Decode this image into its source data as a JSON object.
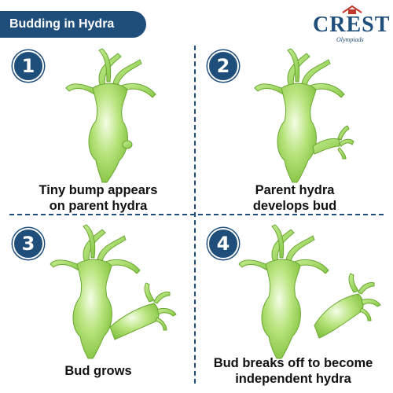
{
  "header": {
    "title": "Budding in Hydra"
  },
  "logo": {
    "main": "CREST",
    "sub": "Olympiads"
  },
  "steps": [
    {
      "number": "1",
      "caption_line1": "Tiny bump appears",
      "caption_line2": "on parent hydra"
    },
    {
      "number": "2",
      "caption_line1": "Parent hydra",
      "caption_line2": "develops bud"
    },
    {
      "number": "3",
      "caption_line1": "Bud grows",
      "caption_line2": ""
    },
    {
      "number": "4",
      "caption_line1": "Bud breaks off to become",
      "caption_line2": "independent hydra"
    }
  ],
  "colors": {
    "accent": "#1f4e7a",
    "hydra_light": "#e6f7c8",
    "hydra_mid": "#a8dc6a",
    "hydra_dark": "#7bbf3a"
  }
}
